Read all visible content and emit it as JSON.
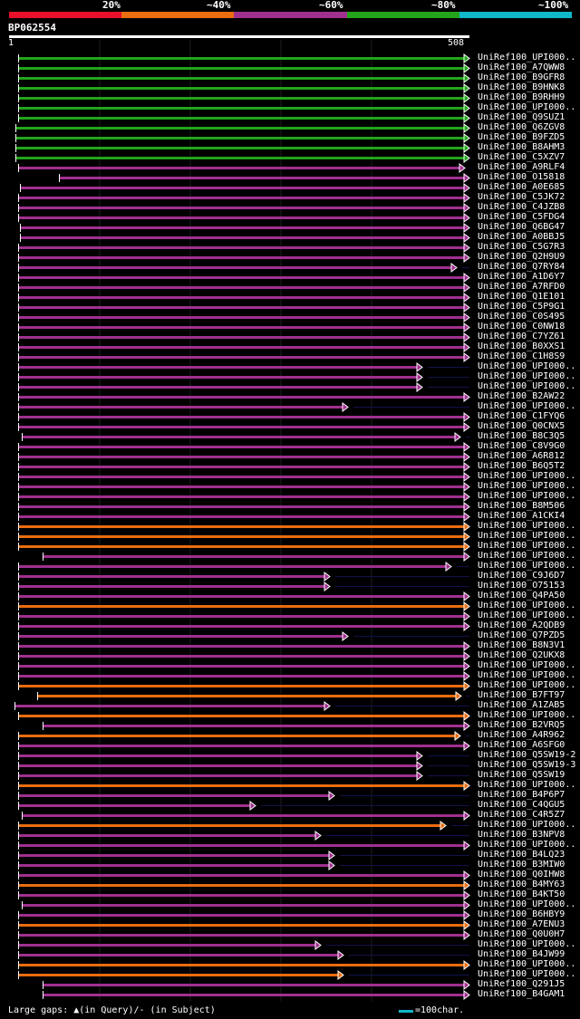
{
  "colors": {
    "c20": "#e8102a",
    "c40": "#ea6d10",
    "c60": "#a0308f",
    "c80": "#22a51a",
    "c100": "#10b8c8",
    "background": "#000000",
    "text": "#ffffff"
  },
  "legend": {
    "labels": [
      "20%",
      "~40%",
      "~60%",
      "~80%",
      "~100%"
    ]
  },
  "query": {
    "name": "BP062554",
    "start": "1",
    "end": "508"
  },
  "footer": {
    "gaps_text": "Large gaps: ▲(in Query)/- (in Subject)",
    "scale_text": "=100char."
  },
  "chart_data": {
    "type": "alignment",
    "query_length": 508,
    "identity_legend": [
      "20%",
      "~40%",
      "~60%",
      "~80%",
      "~100%"
    ],
    "hits": [
      {
        "name": "UniRef100_UPI000..",
        "class": "c80",
        "start": 10,
        "end": 508
      },
      {
        "name": "UniRef100_A7QWW8",
        "class": "c80",
        "start": 10,
        "end": 508
      },
      {
        "name": "UniRef100_B9GFR8",
        "class": "c80",
        "start": 10,
        "end": 508
      },
      {
        "name": "UniRef100_B9HNK8",
        "class": "c80",
        "start": 10,
        "end": 508
      },
      {
        "name": "UniRef100_B9RHH9",
        "class": "c80",
        "start": 10,
        "end": 508
      },
      {
        "name": "UniRef100_UPI000..",
        "class": "c80",
        "start": 10,
        "end": 508
      },
      {
        "name": "UniRef100_Q9SUZ1",
        "class": "c80",
        "start": 10,
        "end": 508
      },
      {
        "name": "UniRef100_Q6ZGV8",
        "class": "c80",
        "start": 7,
        "end": 508
      },
      {
        "name": "UniRef100_B9FZD5",
        "class": "c80",
        "start": 7,
        "end": 508
      },
      {
        "name": "UniRef100_B8AHM3",
        "class": "c80",
        "start": 7,
        "end": 508
      },
      {
        "name": "UniRef100_C5XZV7",
        "class": "c80",
        "start": 7,
        "end": 508
      },
      {
        "name": "UniRef100_A9RLF4",
        "class": "c60",
        "start": 10,
        "end": 503
      },
      {
        "name": "UniRef100_O15818",
        "class": "c60",
        "start": 55,
        "end": 508
      },
      {
        "name": "UniRef100_A0E685",
        "class": "c60",
        "start": 12,
        "end": 508
      },
      {
        "name": "UniRef100_C5JK72",
        "class": "c60",
        "start": 10,
        "end": 508
      },
      {
        "name": "UniRef100_C4JZB8",
        "class": "c60",
        "start": 10,
        "end": 508
      },
      {
        "name": "UniRef100_C5FDG4",
        "class": "c60",
        "start": 10,
        "end": 508
      },
      {
        "name": "UniRef100_Q6BG47",
        "class": "c60",
        "start": 12,
        "end": 508
      },
      {
        "name": "UniRef100_A0BBJ5",
        "class": "c60",
        "start": 12,
        "end": 508
      },
      {
        "name": "UniRef100_C5G7R3",
        "class": "c60",
        "start": 10,
        "end": 508
      },
      {
        "name": "UniRef100_Q2H9U9",
        "class": "c60",
        "start": 10,
        "end": 508
      },
      {
        "name": "UniRef100_Q7RY84",
        "class": "c60",
        "start": 10,
        "end": 494
      },
      {
        "name": "UniRef100_A1D6Y7",
        "class": "c60",
        "start": 10,
        "end": 508
      },
      {
        "name": "UniRef100_A7RFD0",
        "class": "c60",
        "start": 10,
        "end": 508
      },
      {
        "name": "UniRef100_Q1E101",
        "class": "c60",
        "start": 10,
        "end": 508
      },
      {
        "name": "UniRef100_C5P9G1",
        "class": "c60",
        "start": 10,
        "end": 508
      },
      {
        "name": "UniRef100_C0S495",
        "class": "c60",
        "start": 10,
        "end": 508
      },
      {
        "name": "UniRef100_C0NW18",
        "class": "c60",
        "start": 10,
        "end": 508
      },
      {
        "name": "UniRef100_C7YZ61",
        "class": "c60",
        "start": 10,
        "end": 508
      },
      {
        "name": "UniRef100_B0XXS1",
        "class": "c60",
        "start": 10,
        "end": 508
      },
      {
        "name": "UniRef100_C1H8S9",
        "class": "c60",
        "start": 10,
        "end": 508
      },
      {
        "name": "UniRef100_UPI000..",
        "class": "c60",
        "start": 10,
        "end": 456
      },
      {
        "name": "UniRef100_UPI000..",
        "class": "c60",
        "start": 10,
        "end": 456
      },
      {
        "name": "UniRef100_UPI000..",
        "class": "c60",
        "start": 10,
        "end": 456
      },
      {
        "name": "UniRef100_B2AW22",
        "class": "c60",
        "start": 10,
        "end": 508
      },
      {
        "name": "UniRef100_UPI000..",
        "class": "c60",
        "start": 10,
        "end": 374
      },
      {
        "name": "UniRef100_C1FYQ6",
        "class": "c60",
        "start": 10,
        "end": 508
      },
      {
        "name": "UniRef100_Q0CNX5",
        "class": "c60",
        "start": 10,
        "end": 508
      },
      {
        "name": "UniRef100_B8C3Q5",
        "class": "c60",
        "start": 14,
        "end": 498
      },
      {
        "name": "UniRef100_C8V9G0",
        "class": "c60",
        "start": 10,
        "end": 508
      },
      {
        "name": "UniRef100_A6R812",
        "class": "c60",
        "start": 10,
        "end": 508
      },
      {
        "name": "UniRef100_B6Q5T2",
        "class": "c60",
        "start": 10,
        "end": 508
      },
      {
        "name": "UniRef100_UPI000..",
        "class": "c60",
        "start": 10,
        "end": 508
      },
      {
        "name": "UniRef100_UPI000..",
        "class": "c60",
        "start": 10,
        "end": 508
      },
      {
        "name": "UniRef100_UPI000..",
        "class": "c60",
        "start": 10,
        "end": 508
      },
      {
        "name": "UniRef100_B8M506",
        "class": "c60",
        "start": 10,
        "end": 508
      },
      {
        "name": "UniRef100_A1CKI4",
        "class": "c60",
        "start": 10,
        "end": 508
      },
      {
        "name": "UniRef100_UPI000..",
        "class": "c40",
        "start": 10,
        "end": 508
      },
      {
        "name": "UniRef100_UPI000..",
        "class": "c40",
        "start": 10,
        "end": 508
      },
      {
        "name": "UniRef100_UPI000..",
        "class": "c40",
        "start": 10,
        "end": 508
      },
      {
        "name": "UniRef100_UPI000..",
        "class": "c60",
        "start": 37,
        "end": 508
      },
      {
        "name": "UniRef100_UPI000..",
        "class": "c60",
        "start": 10,
        "end": 488
      },
      {
        "name": "UniRef100_C9J6D7",
        "class": "c60",
        "start": 10,
        "end": 354
      },
      {
        "name": "UniRef100_O75153",
        "class": "c60",
        "start": 10,
        "end": 354
      },
      {
        "name": "UniRef100_Q4PA50",
        "class": "c60",
        "start": 10,
        "end": 508
      },
      {
        "name": "UniRef100_UPI000..",
        "class": "c40",
        "start": 10,
        "end": 508
      },
      {
        "name": "UniRef100_UPI000..",
        "class": "c60",
        "start": 10,
        "end": 508
      },
      {
        "name": "UniRef100_A2QDB9",
        "class": "c60",
        "start": 10,
        "end": 508
      },
      {
        "name": "UniRef100_Q7PZD5",
        "class": "c60",
        "start": 10,
        "end": 374
      },
      {
        "name": "UniRef100_B8N3V1",
        "class": "c60",
        "start": 10,
        "end": 508
      },
      {
        "name": "UniRef100_Q2UKX8",
        "class": "c60",
        "start": 10,
        "end": 508
      },
      {
        "name": "UniRef100_UPI000..",
        "class": "c60",
        "start": 10,
        "end": 508
      },
      {
        "name": "UniRef100_UPI000..",
        "class": "c60",
        "start": 10,
        "end": 508
      },
      {
        "name": "UniRef100_UPI000..",
        "class": "c40",
        "start": 10,
        "end": 508
      },
      {
        "name": "UniRef100_B7FT97",
        "class": "c40",
        "start": 31,
        "end": 499
      },
      {
        "name": "UniRef100_A1ZAB5",
        "class": "c60",
        "start": 6,
        "end": 354
      },
      {
        "name": "UniRef100_UPI000..",
        "class": "c40",
        "start": 10,
        "end": 508
      },
      {
        "name": "UniRef100_B2VRQ5",
        "class": "c60",
        "start": 37,
        "end": 508
      },
      {
        "name": "UniRef100_A4R962",
        "class": "c40",
        "start": 10,
        "end": 498
      },
      {
        "name": "UniRef100_A6SFG0",
        "class": "c60",
        "start": 10,
        "end": 508
      },
      {
        "name": "UniRef100_Q5SW19-2",
        "class": "c60",
        "start": 10,
        "end": 456
      },
      {
        "name": "UniRef100_Q5SW19-3",
        "class": "c60",
        "start": 10,
        "end": 456
      },
      {
        "name": "UniRef100_Q5SW19",
        "class": "c60",
        "start": 10,
        "end": 456
      },
      {
        "name": "UniRef100_UPI000..",
        "class": "c40",
        "start": 10,
        "end": 508
      },
      {
        "name": "UniRef100_B4P6P7",
        "class": "c60",
        "start": 10,
        "end": 359
      },
      {
        "name": "UniRef100_C4QGU5",
        "class": "c60",
        "start": 10,
        "end": 272
      },
      {
        "name": "UniRef100_C4R5Z7",
        "class": "c60",
        "start": 14,
        "end": 508
      },
      {
        "name": "UniRef100_UPI000..",
        "class": "c40",
        "start": 10,
        "end": 482
      },
      {
        "name": "UniRef100_B3NPV8",
        "class": "c60",
        "start": 10,
        "end": 344
      },
      {
        "name": "UniRef100_UPI000..",
        "class": "c60",
        "start": 10,
        "end": 508
      },
      {
        "name": "UniRef100_B4LQ23",
        "class": "c60",
        "start": 10,
        "end": 359
      },
      {
        "name": "UniRef100_B3MIW0",
        "class": "c60",
        "start": 10,
        "end": 359
      },
      {
        "name": "UniRef100_Q0IHW8",
        "class": "c60",
        "start": 10,
        "end": 508
      },
      {
        "name": "UniRef100_B4MY63",
        "class": "c40",
        "start": 10,
        "end": 508
      },
      {
        "name": "UniRef100_B4KT50",
        "class": "c60",
        "start": 10,
        "end": 508
      },
      {
        "name": "UniRef100_UPI000..",
        "class": "c60",
        "start": 14,
        "end": 508
      },
      {
        "name": "UniRef100_B6HBY9",
        "class": "c60",
        "start": 10,
        "end": 508
      },
      {
        "name": "UniRef100_A7ENU3",
        "class": "c40",
        "start": 10,
        "end": 508
      },
      {
        "name": "UniRef100_Q0U0H7",
        "class": "c60",
        "start": 10,
        "end": 508
      },
      {
        "name": "UniRef100_UPI000..",
        "class": "c60",
        "start": 10,
        "end": 344
      },
      {
        "name": "UniRef100_B4JW99",
        "class": "c60",
        "start": 10,
        "end": 369
      },
      {
        "name": "UniRef100_UPI000..",
        "class": "c40",
        "start": 10,
        "end": 508
      },
      {
        "name": "UniRef100_UPI000..",
        "class": "c40",
        "start": 10,
        "end": 369
      },
      {
        "name": "UniRef100_Q291J5",
        "class": "c60",
        "start": 37,
        "end": 508
      },
      {
        "name": "UniRef100_B4GAM1",
        "class": "c60",
        "start": 37,
        "end": 508
      }
    ]
  }
}
